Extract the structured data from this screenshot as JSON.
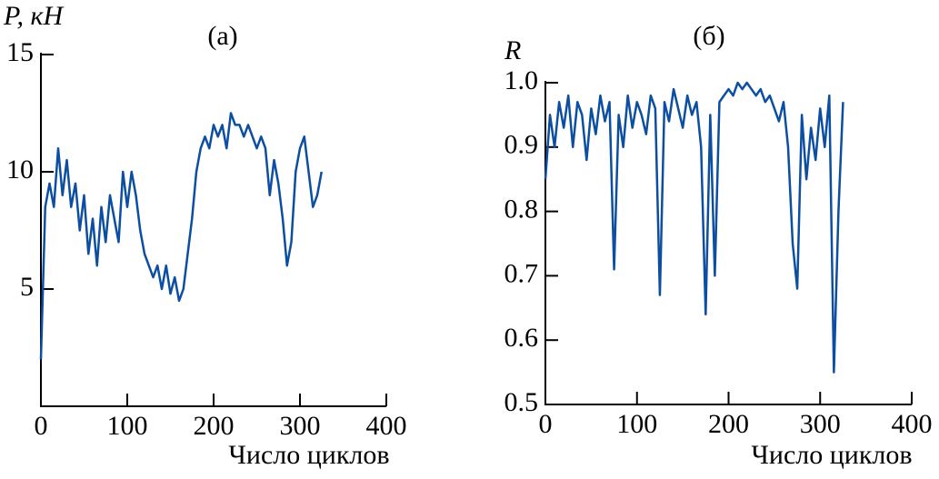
{
  "chart_data": [
    {
      "type": "line",
      "title": "(а)",
      "ylabel": "P, кН",
      "xlabel": "Число циклов",
      "color": "#0b4ea2",
      "x": [
        0,
        5,
        10,
        15,
        20,
        25,
        30,
        35,
        40,
        45,
        50,
        55,
        60,
        65,
        70,
        75,
        80,
        85,
        90,
        95,
        100,
        105,
        110,
        115,
        120,
        125,
        130,
        135,
        140,
        145,
        150,
        155,
        160,
        165,
        170,
        175,
        180,
        185,
        190,
        195,
        200,
        205,
        210,
        215,
        220,
        225,
        230,
        235,
        240,
        245,
        250,
        255,
        260,
        265,
        270,
        275,
        280,
        285,
        290,
        295,
        300,
        305,
        310,
        315,
        320,
        325
      ],
      "values": [
        2,
        8.5,
        9.5,
        8.5,
        11,
        9,
        10.5,
        8.5,
        9.5,
        7.5,
        9,
        6.5,
        8,
        6,
        8.5,
        7,
        9,
        8,
        7,
        10,
        8.5,
        10,
        9,
        7.5,
        6.5,
        6,
        5.5,
        6,
        5,
        6,
        4.8,
        5.5,
        4.5,
        5,
        6.5,
        8,
        10,
        11,
        11.5,
        11,
        12,
        11.5,
        12,
        11,
        12.5,
        12,
        12,
        11.5,
        12,
        11.5,
        11,
        11.5,
        11,
        9,
        10.5,
        9.5,
        8,
        6,
        7,
        10,
        11,
        11.5,
        10,
        8.5,
        9,
        10
      ],
      "xlim": [
        0,
        400
      ],
      "xticks": [
        0,
        100,
        200,
        300,
        400
      ],
      "ylim": [
        0,
        15
      ],
      "yticks": [
        5,
        10,
        15
      ]
    },
    {
      "type": "line",
      "title": "(б)",
      "ylabel": "R",
      "xlabel": "Число циклов",
      "color": "#0b4ea2",
      "x": [
        0,
        5,
        10,
        15,
        20,
        25,
        30,
        35,
        40,
        45,
        50,
        55,
        60,
        65,
        70,
        75,
        80,
        85,
        90,
        95,
        100,
        105,
        110,
        115,
        120,
        125,
        130,
        135,
        140,
        145,
        150,
        155,
        160,
        165,
        170,
        175,
        180,
        185,
        190,
        195,
        200,
        205,
        210,
        215,
        220,
        225,
        230,
        235,
        240,
        245,
        250,
        255,
        260,
        265,
        270,
        275,
        280,
        285,
        290,
        295,
        300,
        305,
        310,
        315,
        320,
        325
      ],
      "values": [
        0.85,
        0.95,
        0.9,
        0.97,
        0.93,
        0.98,
        0.9,
        0.97,
        0.95,
        0.88,
        0.96,
        0.92,
        0.98,
        0.94,
        0.97,
        0.71,
        0.95,
        0.9,
        0.98,
        0.93,
        0.97,
        0.95,
        0.92,
        0.98,
        0.96,
        0.67,
        0.97,
        0.94,
        0.99,
        0.96,
        0.93,
        0.98,
        0.95,
        0.97,
        0.9,
        0.64,
        0.95,
        0.7,
        0.97,
        0.98,
        0.99,
        0.98,
        1,
        0.99,
        1,
        0.99,
        0.98,
        0.99,
        0.97,
        0.98,
        0.96,
        0.94,
        0.97,
        0.9,
        0.75,
        0.68,
        0.95,
        0.85,
        0.93,
        0.88,
        0.96,
        0.9,
        0.98,
        0.55,
        0.8,
        0.97
      ],
      "xlim": [
        0,
        400
      ],
      "xticks": [
        0,
        100,
        200,
        300,
        400
      ],
      "ylim": [
        0.5,
        1
      ],
      "yticks": [
        0.5,
        0.6,
        0.7,
        0.8,
        0.9,
        {
          "value": 1,
          "label": "1.0"
        }
      ]
    }
  ]
}
